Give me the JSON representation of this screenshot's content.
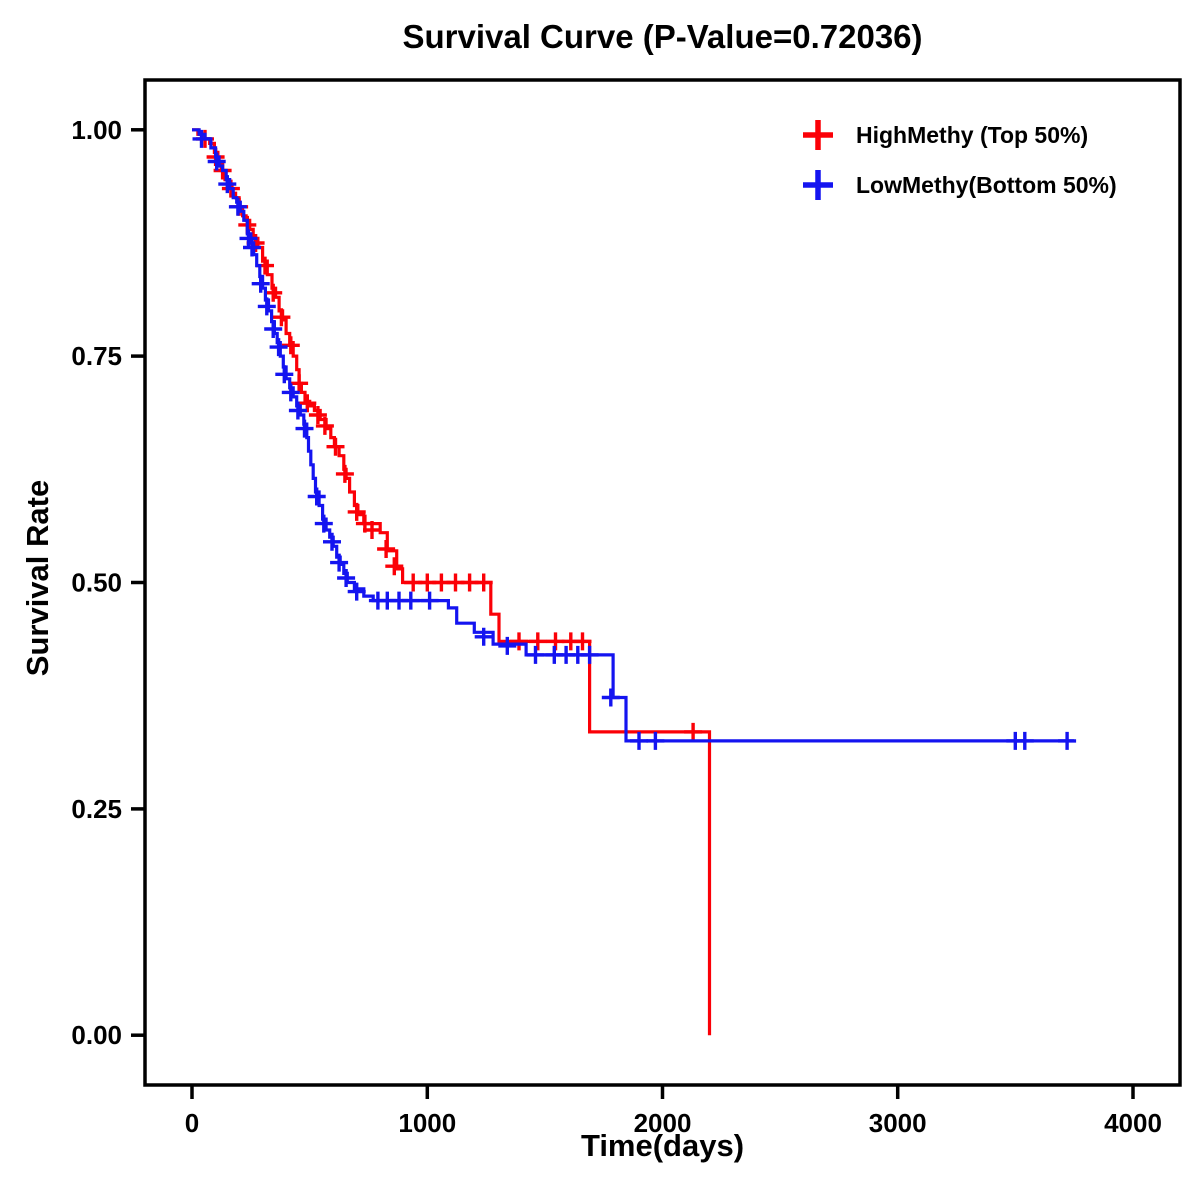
{
  "page": {
    "background": "#ffffff"
  },
  "chart_data": {
    "type": "line",
    "subtype": "kaplan-meier-step-curve",
    "title": "Survival Curve (P-Value=0.72036)",
    "p_value": "0.72036",
    "xlabel": "Time(days)",
    "ylabel": "Survival Rate",
    "xlim": [
      0,
      4000
    ],
    "ylim": [
      0,
      1
    ],
    "grid": false,
    "legend_position": "top-right-inside",
    "frame_color": "#000000",
    "x_ticks": [
      {
        "value": 0,
        "label": "0"
      },
      {
        "value": 1000,
        "label": "1000"
      },
      {
        "value": 2000,
        "label": "2000"
      },
      {
        "value": 3000,
        "label": "3000"
      },
      {
        "value": 4000,
        "label": "4000"
      }
    ],
    "y_ticks": [
      {
        "value": 0.0,
        "label": "0.00"
      },
      {
        "value": 0.25,
        "label": "0.25"
      },
      {
        "value": 0.5,
        "label": "0.50"
      },
      {
        "value": 0.75,
        "label": "0.75"
      },
      {
        "value": 1.0,
        "label": "1.00"
      }
    ],
    "series": [
      {
        "name": "HighMethy (Top 50%)",
        "color": "#FB0007",
        "steps": [
          [
            0,
            1.0
          ],
          [
            25,
            0.995
          ],
          [
            50,
            0.99
          ],
          [
            75,
            0.985
          ],
          [
            95,
            0.975
          ],
          [
            110,
            0.965
          ],
          [
            125,
            0.955
          ],
          [
            140,
            0.945
          ],
          [
            155,
            0.94
          ],
          [
            170,
            0.93
          ],
          [
            185,
            0.925
          ],
          [
            200,
            0.915
          ],
          [
            215,
            0.905
          ],
          [
            230,
            0.9
          ],
          [
            245,
            0.89
          ],
          [
            260,
            0.88
          ],
          [
            280,
            0.87
          ],
          [
            300,
            0.855
          ],
          [
            320,
            0.84
          ],
          [
            340,
            0.825
          ],
          [
            355,
            0.815
          ],
          [
            370,
            0.8
          ],
          [
            385,
            0.79
          ],
          [
            400,
            0.775
          ],
          [
            415,
            0.765
          ],
          [
            430,
            0.75
          ],
          [
            445,
            0.735
          ],
          [
            455,
            0.72
          ],
          [
            465,
            0.71
          ],
          [
            480,
            0.7
          ],
          [
            500,
            0.695
          ],
          [
            520,
            0.69
          ],
          [
            545,
            0.68
          ],
          [
            570,
            0.67
          ],
          [
            590,
            0.66
          ],
          [
            605,
            0.65
          ],
          [
            625,
            0.64
          ],
          [
            645,
            0.625
          ],
          [
            655,
            0.615
          ],
          [
            670,
            0.6
          ],
          [
            690,
            0.585
          ],
          [
            705,
            0.575
          ],
          [
            730,
            0.565
          ],
          [
            800,
            0.555
          ],
          [
            830,
            0.535
          ],
          [
            870,
            0.515
          ],
          [
            895,
            0.5
          ],
          [
            1270,
            0.465
          ],
          [
            1305,
            0.435
          ],
          [
            1690,
            0.335
          ],
          [
            2200,
            0.0
          ]
        ],
        "censors": [
          [
            55,
            0.99
          ],
          [
            100,
            0.97
          ],
          [
            130,
            0.955
          ],
          [
            165,
            0.935
          ],
          [
            200,
            0.915
          ],
          [
            235,
            0.895
          ],
          [
            270,
            0.875
          ],
          [
            310,
            0.85
          ],
          [
            345,
            0.82
          ],
          [
            380,
            0.793
          ],
          [
            420,
            0.762
          ],
          [
            455,
            0.72
          ],
          [
            490,
            0.698
          ],
          [
            535,
            0.685
          ],
          [
            565,
            0.673
          ],
          [
            610,
            0.65
          ],
          [
            650,
            0.62
          ],
          [
            700,
            0.578
          ],
          [
            735,
            0.565
          ],
          [
            765,
            0.558
          ],
          [
            825,
            0.537
          ],
          [
            860,
            0.518
          ],
          [
            940,
            0.5
          ],
          [
            1000,
            0.5
          ],
          [
            1060,
            0.5
          ],
          [
            1120,
            0.5
          ],
          [
            1180,
            0.5
          ],
          [
            1240,
            0.5
          ],
          [
            1390,
            0.435
          ],
          [
            1470,
            0.435
          ],
          [
            1545,
            0.435
          ],
          [
            1610,
            0.435
          ],
          [
            1660,
            0.435
          ],
          [
            2130,
            0.335
          ]
        ]
      },
      {
        "name": "LowMethy(Bottom 50%)",
        "color": "#1414F0",
        "steps": [
          [
            0,
            1.0
          ],
          [
            30,
            0.995
          ],
          [
            55,
            0.99
          ],
          [
            80,
            0.98
          ],
          [
            100,
            0.97
          ],
          [
            115,
            0.96
          ],
          [
            130,
            0.955
          ],
          [
            145,
            0.945
          ],
          [
            160,
            0.935
          ],
          [
            175,
            0.925
          ],
          [
            190,
            0.92
          ],
          [
            205,
            0.91
          ],
          [
            220,
            0.9
          ],
          [
            235,
            0.885
          ],
          [
            250,
            0.875
          ],
          [
            262,
            0.862
          ],
          [
            275,
            0.85
          ],
          [
            288,
            0.838
          ],
          [
            300,
            0.825
          ],
          [
            312,
            0.812
          ],
          [
            325,
            0.8
          ],
          [
            338,
            0.788
          ],
          [
            350,
            0.775
          ],
          [
            362,
            0.765
          ],
          [
            375,
            0.75
          ],
          [
            388,
            0.738
          ],
          [
            400,
            0.725
          ],
          [
            415,
            0.715
          ],
          [
            430,
            0.705
          ],
          [
            445,
            0.695
          ],
          [
            460,
            0.685
          ],
          [
            475,
            0.675
          ],
          [
            488,
            0.66
          ],
          [
            495,
            0.645
          ],
          [
            505,
            0.63
          ],
          [
            515,
            0.615
          ],
          [
            525,
            0.6
          ],
          [
            540,
            0.585
          ],
          [
            555,
            0.57
          ],
          [
            570,
            0.558
          ],
          [
            585,
            0.55
          ],
          [
            600,
            0.54
          ],
          [
            615,
            0.528
          ],
          [
            630,
            0.52
          ],
          [
            645,
            0.51
          ],
          [
            660,
            0.5
          ],
          [
            690,
            0.493
          ],
          [
            730,
            0.485
          ],
          [
            770,
            0.48
          ],
          [
            1090,
            0.472
          ],
          [
            1125,
            0.455
          ],
          [
            1200,
            0.445
          ],
          [
            1280,
            0.432
          ],
          [
            1420,
            0.42
          ],
          [
            1790,
            0.373
          ],
          [
            1845,
            0.325
          ],
          [
            3750,
            0.325
          ]
        ],
        "censors": [
          [
            40,
            0.99
          ],
          [
            105,
            0.965
          ],
          [
            150,
            0.94
          ],
          [
            195,
            0.915
          ],
          [
            240,
            0.88
          ],
          [
            255,
            0.87
          ],
          [
            292,
            0.83
          ],
          [
            318,
            0.805
          ],
          [
            345,
            0.78
          ],
          [
            368,
            0.76
          ],
          [
            392,
            0.73
          ],
          [
            420,
            0.71
          ],
          [
            450,
            0.69
          ],
          [
            478,
            0.67
          ],
          [
            530,
            0.595
          ],
          [
            560,
            0.565
          ],
          [
            595,
            0.545
          ],
          [
            625,
            0.522
          ],
          [
            655,
            0.505
          ],
          [
            700,
            0.49
          ],
          [
            790,
            0.48
          ],
          [
            830,
            0.48
          ],
          [
            880,
            0.48
          ],
          [
            930,
            0.48
          ],
          [
            1010,
            0.48
          ],
          [
            1240,
            0.44
          ],
          [
            1340,
            0.43
          ],
          [
            1460,
            0.42
          ],
          [
            1540,
            0.42
          ],
          [
            1590,
            0.42
          ],
          [
            1640,
            0.42
          ],
          [
            1690,
            0.42
          ],
          [
            1780,
            0.373
          ],
          [
            1900,
            0.325
          ],
          [
            1970,
            0.325
          ],
          [
            3500,
            0.325
          ],
          [
            3540,
            0.325
          ],
          [
            3720,
            0.325
          ]
        ]
      }
    ]
  }
}
